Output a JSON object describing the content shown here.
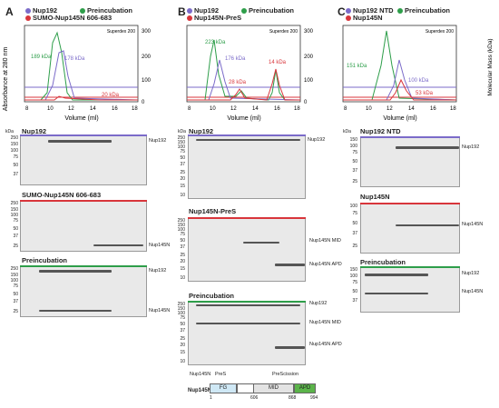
{
  "panels": [
    {
      "label": "A",
      "legend": [
        {
          "text": "Nup192",
          "color": "#7b6bc9"
        },
        {
          "text": "Preincubation",
          "color": "#2e9e4a"
        },
        {
          "text": "SUMO-Nup145N 606-683",
          "color": "#d8353b"
        }
      ],
      "column": "Superdex 200",
      "peaks": [
        "189 kDa",
        "178 kDa",
        "20 kDa"
      ],
      "gels": [
        {
          "title": "Nup192",
          "bands": [
            "Nup192"
          ]
        },
        {
          "title": "SUMO-Nup145N 606-683",
          "bands": [
            "Nup145N"
          ]
        },
        {
          "title": "Preincubation",
          "bands": [
            "Nup192",
            "Nup145N"
          ]
        }
      ]
    },
    {
      "label": "B",
      "legend": [
        {
          "text": "Nup192",
          "color": "#7b6bc9"
        },
        {
          "text": "Preincubation",
          "color": "#2e9e4a"
        },
        {
          "text": "Nup145N-PreS",
          "color": "#d8353b"
        }
      ],
      "column": "Superdex 200",
      "peaks": [
        "223 kDa",
        "176 kDa",
        "28 kDa",
        "14 kDa"
      ],
      "gels": [
        {
          "title": "Nup192",
          "bands": [
            "Nup192"
          ]
        },
        {
          "title": "Nup145N-PreS",
          "bands": [
            "Nup145N MID",
            "Nup145N APD"
          ]
        },
        {
          "title": "Preincubation",
          "bands": [
            "Nup192",
            "Nup145N MID",
            "Nup145N APD"
          ]
        }
      ]
    },
    {
      "label": "C",
      "legend": [
        {
          "text": "Nup192 NTD",
          "color": "#7b6bc9"
        },
        {
          "text": "Nup145N",
          "color": "#d8353b"
        },
        {
          "text": "Preincubation",
          "color": "#2e9e4a"
        }
      ],
      "column": "Superdex 200",
      "peaks": [
        "151 kDa",
        "100 kDa",
        "53 kDa"
      ],
      "gels": [
        {
          "title": "Nup192 NTD",
          "bands": [
            "Nup192"
          ]
        },
        {
          "title": "Nup145N",
          "bands": [
            "Nup145N"
          ]
        },
        {
          "title": "Preincubation",
          "bands": [
            "Nup192",
            "Nup145N"
          ]
        }
      ]
    }
  ],
  "axes": {
    "y_left": "Absorbance at 280 nm",
    "y_right": "Molecular Mass (kDa)",
    "x": "Volume (ml)",
    "x_ticks": [
      "8",
      "10",
      "12",
      "14",
      "16",
      "18"
    ],
    "y_right_ticks": [
      "300",
      "200",
      "100",
      "0"
    ],
    "kda": "kDa"
  },
  "markers": {
    "gelA1": [
      "250",
      "150",
      "100",
      "75",
      "50",
      "37"
    ],
    "gelA2": [
      "250",
      "150",
      "100",
      "75",
      "50",
      "37",
      "25"
    ],
    "gelA3": [
      "250",
      "150",
      "100",
      "75",
      "50",
      "37",
      "25"
    ],
    "gelB1": [
      "250",
      "150",
      "100",
      "75",
      "50",
      "37",
      "25",
      "20",
      "15",
      "10"
    ],
    "gelB2": [
      "250",
      "150",
      "100",
      "75",
      "50",
      "37",
      "25",
      "20",
      "15",
      "10"
    ],
    "gelB3": [
      "250",
      "150",
      "100",
      "75",
      "50",
      "37",
      "25",
      "20",
      "15",
      "10"
    ],
    "gelC1": [
      "150",
      "100",
      "75",
      "50",
      "37",
      "25"
    ],
    "gelC2": [
      "100",
      "75",
      "50",
      "37",
      "25"
    ],
    "gelC3": [
      "150",
      "100",
      "75",
      "50",
      "37"
    ]
  },
  "schematic": {
    "name_top": "Nup145N",
    "pres": "PreS",
    "prescission": "PreScission",
    "name": "Nup145N",
    "domains": [
      "FG",
      "MID",
      "APD"
    ],
    "positions": [
      "1",
      "606",
      "868",
      "994"
    ],
    "colors": {
      "fg": "#cfe8f5",
      "mid": "#e3e3e3",
      "apd": "#5bb44a"
    }
  }
}
